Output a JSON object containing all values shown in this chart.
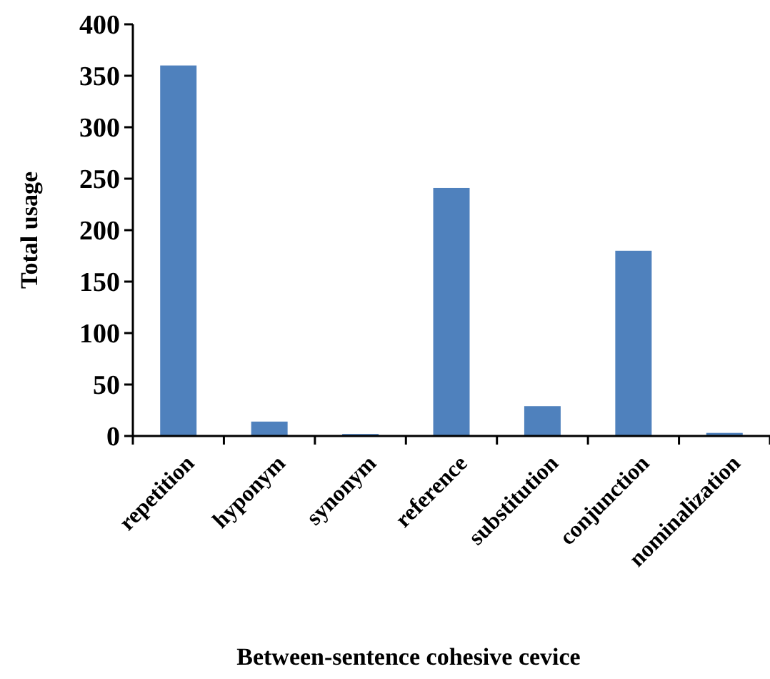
{
  "chart_data": {
    "type": "bar",
    "xlabel": "Between-sentence cohesive cevice",
    "ylabel": "Total usage",
    "categories": [
      "repetition",
      "hyponym",
      "synonym",
      "reference",
      "substitution",
      "conjunction",
      "nominalization"
    ],
    "values": [
      360,
      14,
      2,
      241,
      29,
      180,
      3
    ],
    "color": "#4f81bd",
    "ylim": [
      0,
      400
    ],
    "yticks": [
      0,
      50,
      100,
      150,
      200,
      250,
      300,
      350,
      400
    ],
    "grid": false
  }
}
